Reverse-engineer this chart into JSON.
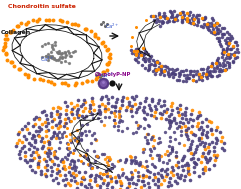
{
  "bg_color": "#ffffff",
  "chondroitin_label": "Chondroitin sulfate",
  "collagen_label": "Collagen",
  "capolyp_label": "Ca-polyP-NP",
  "orange_dot_color": "#FF8C00",
  "purple_dot_color": "#4A3F7A",
  "collagen_line_color": "#111111",
  "label_color_chondroitin": "#CC2200",
  "label_color_collagen": "#111111",
  "label_color_capolyp": "#880088",
  "label_color_ca": "#3355CC",
  "figsize": [
    2.41,
    1.89
  ],
  "dpi": 100
}
